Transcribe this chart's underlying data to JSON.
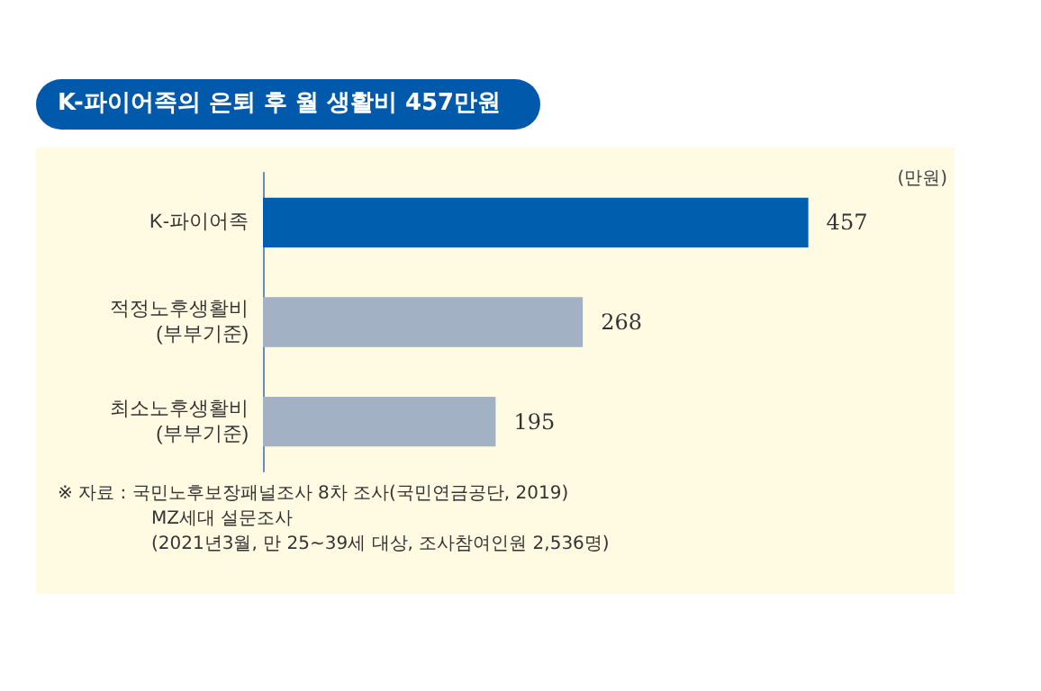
{
  "chart_data": {
    "type": "bar",
    "orientation": "horizontal",
    "title": "K-파이어족의 은퇴 후 월 생활비 457만원",
    "xlabel": "(만원)",
    "categories": [
      "K-파이어족",
      "적정노후생활비\n(부부기준)",
      "최소노후생활비\n(부부기준)"
    ],
    "values": [
      457,
      268,
      195
    ],
    "colors": [
      "#005eae",
      "#a2b1c4",
      "#a2b1c4"
    ],
    "data_labels": true,
    "annotations": [
      "※ 자료 : 국민노후보장패널조사 8차 조사(국민연금공단, 2019)",
      "MZ세대 설문조사",
      "(2021년3월, 만 25~39세 대상, 조사참여인원 2,536명)"
    ]
  }
}
